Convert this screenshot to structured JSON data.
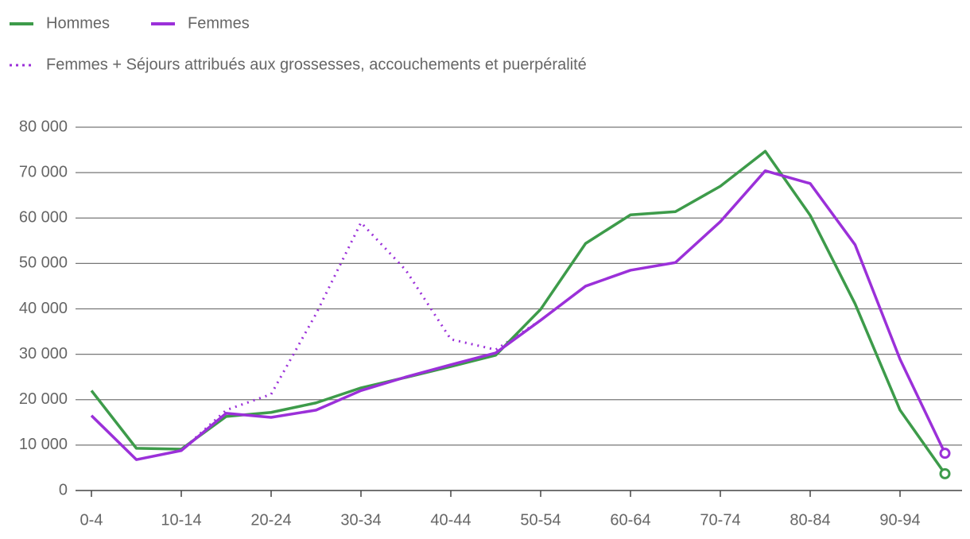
{
  "chart_data": {
    "type": "line",
    "categories": [
      "0-4",
      null,
      "10-14",
      null,
      "20-24",
      null,
      "30-34",
      null,
      "40-44",
      null,
      "50-54",
      null,
      "60-64",
      null,
      "70-74",
      null,
      "80-84",
      null,
      "90-94",
      null
    ],
    "series": [
      {
        "name": "Hommes",
        "color": "#3d9b4a",
        "style": "solid",
        "end_marker": true,
        "values": [
          22000,
          9300,
          9100,
          16300,
          17200,
          19300,
          22600,
          24900,
          27300,
          29800,
          39900,
          54400,
          60700,
          61400,
          67000,
          74700,
          60600,
          41100,
          17700,
          3700
        ]
      },
      {
        "name": "Femmes",
        "color": "#9b30d9",
        "style": "solid",
        "end_marker": true,
        "values": [
          16500,
          6800,
          8800,
          17000,
          16100,
          17700,
          22000,
          25000,
          27700,
          30300,
          37500,
          45000,
          48500,
          50200,
          59200,
          70400,
          67600,
          54100,
          28900,
          8200
        ]
      },
      {
        "name": "Femmes + Séjours attribués aux grossesses, accouchements et puerpéralité",
        "color": "#9b30d9",
        "style": "dotted",
        "end_marker": false,
        "values": [
          null,
          null,
          8800,
          17700,
          21200,
          38900,
          59000,
          48500,
          33300,
          31000,
          37500,
          null,
          null,
          null,
          null,
          null,
          null,
          null,
          null,
          null
        ]
      }
    ],
    "ylim": [
      0,
      80000
    ],
    "yticks": [
      0,
      {
        "value": 10000,
        "label": "10 000"
      },
      {
        "value": 20000,
        "label": "20 000"
      },
      {
        "value": 30000,
        "label": "30 000"
      },
      {
        "value": 40000,
        "label": "40 000"
      },
      {
        "value": 50000,
        "label": "50 000"
      },
      {
        "value": 60000,
        "label": "60 000"
      },
      {
        "value": 70000,
        "label": "70 000"
      },
      {
        "value": 80000,
        "label": "80 000"
      }
    ],
    "grid": true
  }
}
